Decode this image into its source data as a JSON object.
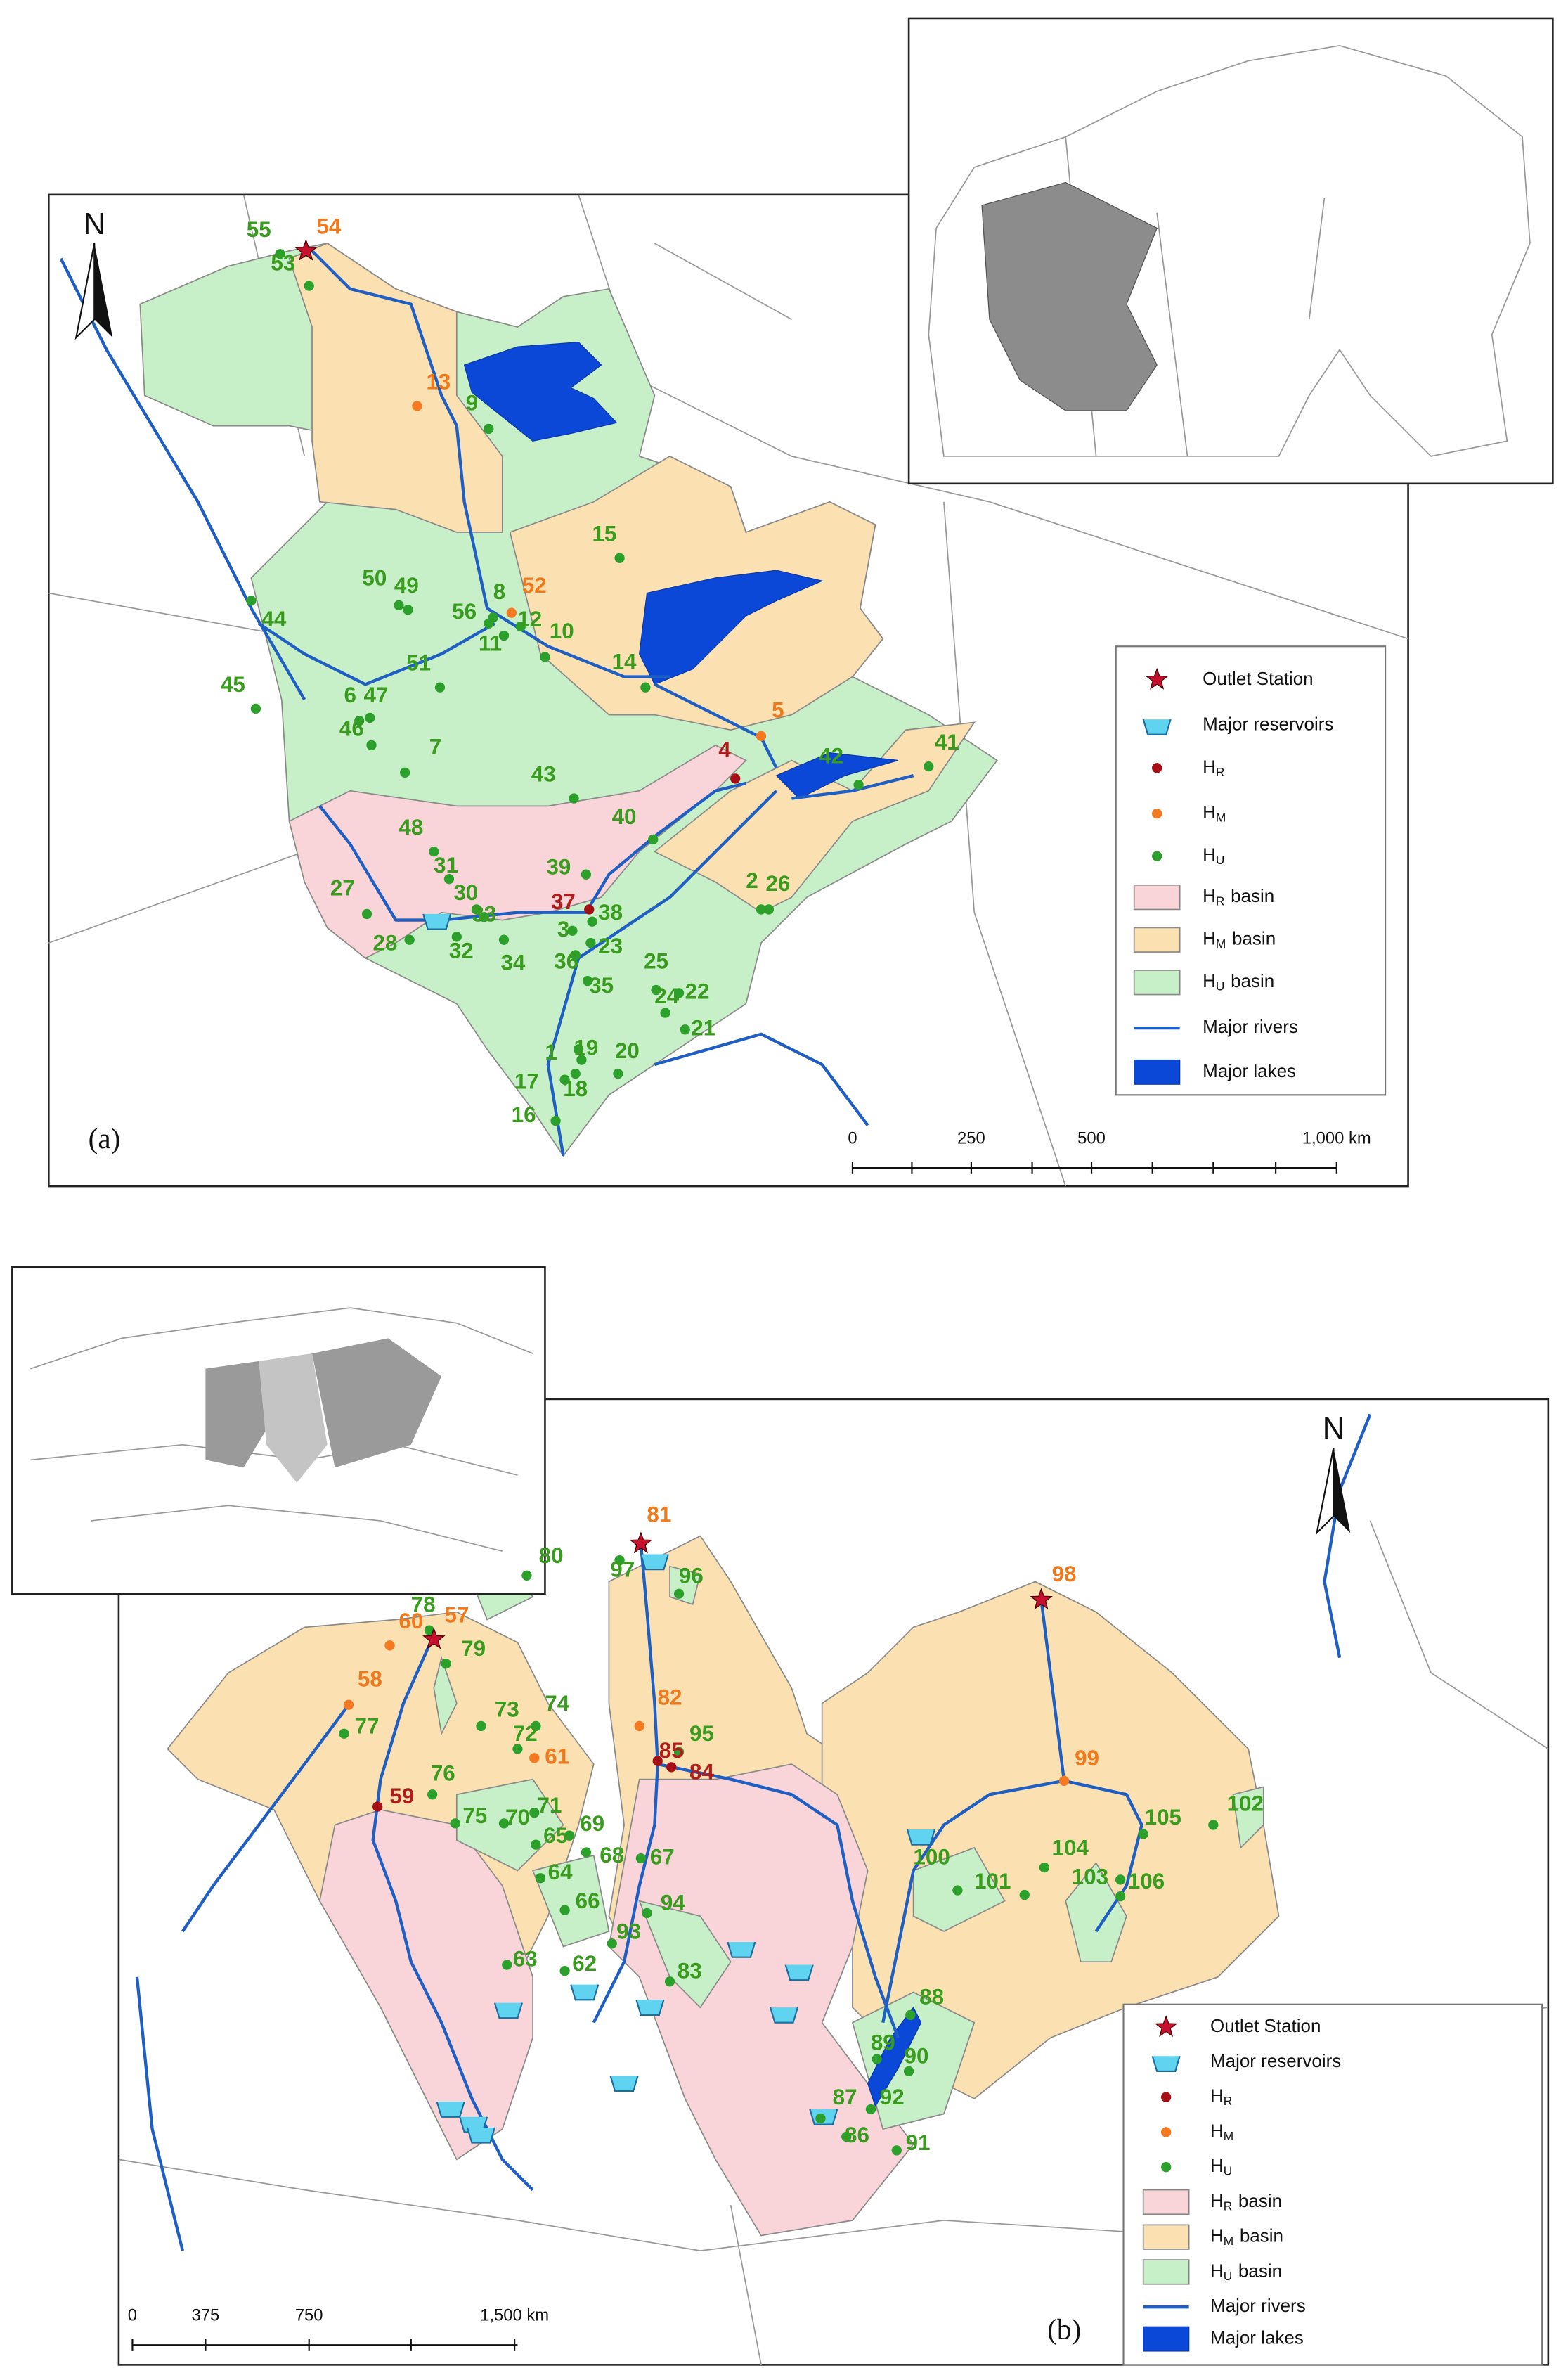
{
  "panel_a": {
    "label": "(a)",
    "north": "N",
    "stations": [
      {
        "id": "55",
        "type": "HU"
      },
      {
        "id": "54",
        "type": "HM",
        "outlet": true
      },
      {
        "id": "53",
        "type": "HU"
      },
      {
        "id": "13",
        "type": "HM"
      },
      {
        "id": "9",
        "type": "HU"
      },
      {
        "id": "15",
        "type": "HU"
      },
      {
        "id": "50",
        "type": "HU"
      },
      {
        "id": "49",
        "type": "HU"
      },
      {
        "id": "8",
        "type": "HU"
      },
      {
        "id": "52",
        "type": "HM"
      },
      {
        "id": "56",
        "type": "HU"
      },
      {
        "id": "12",
        "type": "HU"
      },
      {
        "id": "10",
        "type": "HU"
      },
      {
        "id": "11",
        "type": "HU"
      },
      {
        "id": "14",
        "type": "HU"
      },
      {
        "id": "44",
        "type": "HU"
      },
      {
        "id": "51",
        "type": "HU"
      },
      {
        "id": "45",
        "type": "HU"
      },
      {
        "id": "6",
        "type": "HU"
      },
      {
        "id": "47",
        "type": "HU"
      },
      {
        "id": "46",
        "type": "HU"
      },
      {
        "id": "5",
        "type": "HM"
      },
      {
        "id": "4",
        "type": "HR"
      },
      {
        "id": "42",
        "type": "HU"
      },
      {
        "id": "41",
        "type": "HU"
      },
      {
        "id": "7",
        "type": "HU"
      },
      {
        "id": "43",
        "type": "HU"
      },
      {
        "id": "40",
        "type": "HU"
      },
      {
        "id": "48",
        "type": "HU"
      },
      {
        "id": "31",
        "type": "HU"
      },
      {
        "id": "39",
        "type": "HU"
      },
      {
        "id": "30",
        "type": "HU"
      },
      {
        "id": "2",
        "type": "HU"
      },
      {
        "id": "26",
        "type": "HU"
      },
      {
        "id": "27",
        "type": "HU"
      },
      {
        "id": "37",
        "type": "HR"
      },
      {
        "id": "38",
        "type": "HU"
      },
      {
        "id": "3",
        "type": "HU"
      },
      {
        "id": "33",
        "type": "HU"
      },
      {
        "id": "28",
        "type": "HU"
      },
      {
        "id": "32",
        "type": "HU"
      },
      {
        "id": "34",
        "type": "HU"
      },
      {
        "id": "36",
        "type": "HU"
      },
      {
        "id": "23",
        "type": "HU"
      },
      {
        "id": "25",
        "type": "HU"
      },
      {
        "id": "35",
        "type": "HU"
      },
      {
        "id": "24",
        "type": "HU"
      },
      {
        "id": "22",
        "type": "HU"
      },
      {
        "id": "21",
        "type": "HU"
      },
      {
        "id": "1",
        "type": "HU"
      },
      {
        "id": "19",
        "type": "HU"
      },
      {
        "id": "20",
        "type": "HU"
      },
      {
        "id": "17",
        "type": "HU"
      },
      {
        "id": "18",
        "type": "HU"
      },
      {
        "id": "16",
        "type": "HU"
      }
    ],
    "legend": [
      {
        "label": "Outlet Station"
      },
      {
        "label": "Major reservoirs"
      },
      {
        "label": "H",
        "sub": "R"
      },
      {
        "label": "H",
        "sub": "M"
      },
      {
        "label": "H",
        "sub": "U"
      },
      {
        "label": "H",
        "sub": "R",
        "suffix": "basin"
      },
      {
        "label": "H",
        "sub": "M",
        "suffix": "basin"
      },
      {
        "label": "H",
        "sub": "U",
        "suffix": "basin"
      },
      {
        "label": "Major rivers"
      },
      {
        "label": "Major lakes"
      }
    ],
    "scale_labels": [
      "0",
      "250",
      "500",
      "1,000 km"
    ]
  },
  "panel_b": {
    "label": "(b)",
    "north": "N",
    "stations": [
      {
        "id": "78",
        "type": "HU"
      },
      {
        "id": "57",
        "type": "HM",
        "outlet": true
      },
      {
        "id": "79",
        "type": "HU"
      },
      {
        "id": "80",
        "type": "HU"
      },
      {
        "id": "81",
        "type": "HM",
        "outlet": true
      },
      {
        "id": "97",
        "type": "HU"
      },
      {
        "id": "96",
        "type": "HU"
      },
      {
        "id": "60",
        "type": "HM"
      },
      {
        "id": "58",
        "type": "HM"
      },
      {
        "id": "77",
        "type": "HU"
      },
      {
        "id": "73",
        "type": "HU"
      },
      {
        "id": "74",
        "type": "HU"
      },
      {
        "id": "72",
        "type": "HU"
      },
      {
        "id": "61",
        "type": "HM"
      },
      {
        "id": "82",
        "type": "HM"
      },
      {
        "id": "95",
        "type": "HU"
      },
      {
        "id": "85",
        "type": "HR"
      },
      {
        "id": "84",
        "type": "HR"
      },
      {
        "id": "59",
        "type": "HR"
      },
      {
        "id": "76",
        "type": "HU"
      },
      {
        "id": "75",
        "type": "HU"
      },
      {
        "id": "70",
        "type": "HU"
      },
      {
        "id": "71",
        "type": "HU"
      },
      {
        "id": "69",
        "type": "HU"
      },
      {
        "id": "65",
        "type": "HU"
      },
      {
        "id": "68",
        "type": "HU"
      },
      {
        "id": "67",
        "type": "HU"
      },
      {
        "id": "64",
        "type": "HU"
      },
      {
        "id": "66",
        "type": "HU"
      },
      {
        "id": "94",
        "type": "HU"
      },
      {
        "id": "63",
        "type": "HU"
      },
      {
        "id": "62",
        "type": "HU"
      },
      {
        "id": "93",
        "type": "HU"
      },
      {
        "id": "83",
        "type": "HU"
      },
      {
        "id": "99",
        "type": "HM"
      },
      {
        "id": "98",
        "type": "HM",
        "outlet": true
      },
      {
        "id": "105",
        "type": "HU"
      },
      {
        "id": "102",
        "type": "HU"
      },
      {
        "id": "100",
        "type": "HU"
      },
      {
        "id": "101",
        "type": "HU"
      },
      {
        "id": "104",
        "type": "HU"
      },
      {
        "id": "103",
        "type": "HU"
      },
      {
        "id": "106",
        "type": "HU"
      },
      {
        "id": "88",
        "type": "HU"
      },
      {
        "id": "89",
        "type": "HU"
      },
      {
        "id": "90",
        "type": "HU"
      },
      {
        "id": "92",
        "type": "HU"
      },
      {
        "id": "87",
        "type": "HU"
      },
      {
        "id": "86",
        "type": "HU"
      },
      {
        "id": "91",
        "type": "HU"
      }
    ],
    "legend": [
      {
        "label": "Outlet Station"
      },
      {
        "label": "Major reservoirs"
      },
      {
        "label": "H",
        "sub": "R"
      },
      {
        "label": "H",
        "sub": "M"
      },
      {
        "label": "H",
        "sub": "U"
      },
      {
        "label": "H",
        "sub": "R",
        "suffix": "basin"
      },
      {
        "label": "H",
        "sub": "M",
        "suffix": "basin"
      },
      {
        "label": "H",
        "sub": "U",
        "suffix": "basin"
      },
      {
        "label": "Major rivers"
      },
      {
        "label": "Major lakes"
      }
    ],
    "scale_labels": [
      "0",
      "375",
      "750",
      "1,500 km"
    ]
  }
}
